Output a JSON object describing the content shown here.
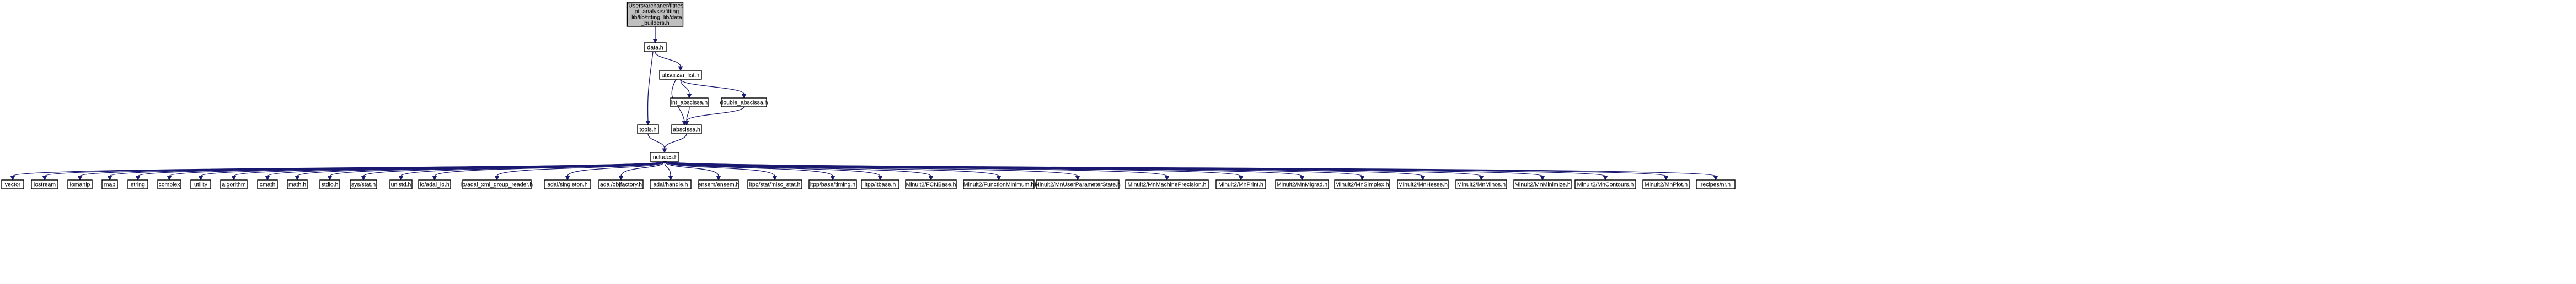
{
  "diagram": {
    "type": "include-dependency-graph",
    "colors": {
      "edge": "#191970",
      "node_fill": "#ffffff",
      "root_fill": "#bfbfbf",
      "node_border": "#000000",
      "background": "#ffffff"
    },
    "nodes": [
      {
        "id": "root",
        "lines": [
          "/Users/archaner/fitnes",
          "_pt_analysis/fitting",
          "_lib/lib/fitting_lib/data",
          "_builders.h"
        ],
        "root": true
      },
      {
        "id": "data",
        "lines": [
          "data.h"
        ]
      },
      {
        "id": "abscissa_list",
        "lines": [
          "abscissa_list.h"
        ]
      },
      {
        "id": "int_abscissa",
        "lines": [
          "int_abscissa.h"
        ]
      },
      {
        "id": "double_abscissa",
        "lines": [
          "double_abscissa.h"
        ]
      },
      {
        "id": "tools",
        "lines": [
          "tools.h"
        ]
      },
      {
        "id": "abscissa",
        "lines": [
          "abscissa.h"
        ]
      },
      {
        "id": "includes",
        "lines": [
          "includes.h"
        ]
      },
      {
        "id": "vector",
        "lines": [
          "vector"
        ]
      },
      {
        "id": "iostream",
        "lines": [
          "iostream"
        ]
      },
      {
        "id": "iomanip",
        "lines": [
          "iomanip"
        ]
      },
      {
        "id": "map",
        "lines": [
          "map"
        ]
      },
      {
        "id": "string",
        "lines": [
          "string"
        ]
      },
      {
        "id": "complex",
        "lines": [
          "complex"
        ]
      },
      {
        "id": "utility",
        "lines": [
          "utility"
        ]
      },
      {
        "id": "algorithm",
        "lines": [
          "algorithm"
        ]
      },
      {
        "id": "cmath",
        "lines": [
          "cmath"
        ]
      },
      {
        "id": "math",
        "lines": [
          "math.h"
        ]
      },
      {
        "id": "stdio",
        "lines": [
          "stdio.h"
        ]
      },
      {
        "id": "sys_stat",
        "lines": [
          "sys/stat.h"
        ]
      },
      {
        "id": "unistd",
        "lines": [
          "unistd.h"
        ]
      },
      {
        "id": "io_adal_io",
        "lines": [
          "io/adal_io.h"
        ]
      },
      {
        "id": "io_adal_xml",
        "lines": [
          "io/adal_xml_group_reader.h"
        ]
      },
      {
        "id": "adal_singleton",
        "lines": [
          "adal/singleton.h"
        ]
      },
      {
        "id": "adal_objfactory",
        "lines": [
          "adal/objfactory.h"
        ]
      },
      {
        "id": "adal_handle",
        "lines": [
          "adal/handle.h"
        ]
      },
      {
        "id": "ensem",
        "lines": [
          "ensem/ensem.h"
        ]
      },
      {
        "id": "itpp_stat_misc",
        "lines": [
          "itpp/stat/misc_stat.h"
        ]
      },
      {
        "id": "itpp_timing",
        "lines": [
          "itpp/base/timing.h"
        ]
      },
      {
        "id": "itpp_itbase",
        "lines": [
          "itpp/itbase.h"
        ]
      },
      {
        "id": "minuit_fcnbase",
        "lines": [
          "Minuit2/FCNBase.h"
        ]
      },
      {
        "id": "minuit_fmin",
        "lines": [
          "Minuit2/FunctionMinimum.h"
        ]
      },
      {
        "id": "minuit_upstate",
        "lines": [
          "Minuit2/MnUserParameterState.h"
        ]
      },
      {
        "id": "minuit_machprec",
        "lines": [
          "Minuit2/MnMachinePrecision.h"
        ]
      },
      {
        "id": "minuit_print",
        "lines": [
          "Minuit2/MnPrint.h"
        ]
      },
      {
        "id": "minuit_migrad",
        "lines": [
          "Minuit2/MnMigrad.h"
        ]
      },
      {
        "id": "minuit_simplex",
        "lines": [
          "Minuit2/MnSimplex.h"
        ]
      },
      {
        "id": "minuit_hesse",
        "lines": [
          "Minuit2/MnHesse.h"
        ]
      },
      {
        "id": "minuit_minos",
        "lines": [
          "Minuit2/MnMinos.h"
        ]
      },
      {
        "id": "minuit_minimize",
        "lines": [
          "Minuit2/MnMinimize.h"
        ]
      },
      {
        "id": "minuit_contours",
        "lines": [
          "Minuit2/MnContours.h"
        ]
      },
      {
        "id": "minuit_plot",
        "lines": [
          "Minuit2/MnPlot.h"
        ]
      },
      {
        "id": "recipes_nr",
        "lines": [
          "recipes/nr.h"
        ]
      }
    ],
    "edges": [
      [
        "root",
        "data"
      ],
      [
        "data",
        "abscissa_list"
      ],
      [
        "data",
        "tools"
      ],
      [
        "abscissa_list",
        "int_abscissa"
      ],
      [
        "abscissa_list",
        "double_abscissa"
      ],
      [
        "abscissa_list",
        "abscissa"
      ],
      [
        "int_abscissa",
        "abscissa"
      ],
      [
        "double_abscissa",
        "abscissa"
      ],
      [
        "tools",
        "includes"
      ],
      [
        "abscissa",
        "includes"
      ],
      [
        "includes",
        "vector"
      ],
      [
        "includes",
        "iostream"
      ],
      [
        "includes",
        "iomanip"
      ],
      [
        "includes",
        "map"
      ],
      [
        "includes",
        "string"
      ],
      [
        "includes",
        "complex"
      ],
      [
        "includes",
        "utility"
      ],
      [
        "includes",
        "algorithm"
      ],
      [
        "includes",
        "cmath"
      ],
      [
        "includes",
        "math"
      ],
      [
        "includes",
        "stdio"
      ],
      [
        "includes",
        "sys_stat"
      ],
      [
        "includes",
        "unistd"
      ],
      [
        "includes",
        "io_adal_io"
      ],
      [
        "includes",
        "io_adal_xml"
      ],
      [
        "includes",
        "adal_singleton"
      ],
      [
        "includes",
        "adal_objfactory"
      ],
      [
        "includes",
        "adal_handle"
      ],
      [
        "includes",
        "ensem"
      ],
      [
        "includes",
        "itpp_stat_misc"
      ],
      [
        "includes",
        "itpp_timing"
      ],
      [
        "includes",
        "itpp_itbase"
      ],
      [
        "includes",
        "minuit_fcnbase"
      ],
      [
        "includes",
        "minuit_fmin"
      ],
      [
        "includes",
        "minuit_upstate"
      ],
      [
        "includes",
        "minuit_machprec"
      ],
      [
        "includes",
        "minuit_print"
      ],
      [
        "includes",
        "minuit_migrad"
      ],
      [
        "includes",
        "minuit_simplex"
      ],
      [
        "includes",
        "minuit_hesse"
      ],
      [
        "includes",
        "minuit_minos"
      ],
      [
        "includes",
        "minuit_minimize"
      ],
      [
        "includes",
        "minuit_contours"
      ],
      [
        "includes",
        "minuit_plot"
      ],
      [
        "includes",
        "recipes_nr"
      ]
    ]
  }
}
